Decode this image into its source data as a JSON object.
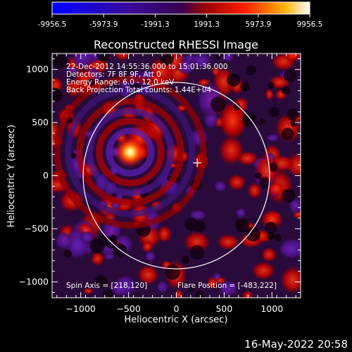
{
  "chart_data": {
    "type": "heatmap",
    "title": "Reconstructed RHESSI Image",
    "xlabel": "Heliocentric X (arcsec)",
    "ylabel": "Heliocentric Y (arcsec)",
    "xlim": [
      -1300,
      1300
    ],
    "ylim": [
      -1150,
      1150
    ],
    "x_ticks": [
      -1000,
      -500,
      0,
      500,
      1000
    ],
    "y_ticks": [
      1000,
      500,
      0,
      -500,
      -1000
    ],
    "colorbar": {
      "min": -9956.5,
      "max": 9956.5,
      "tick_labels": [
        "-9956.5",
        "-5973.9",
        "-1991.3",
        "1991.3",
        "5973.9",
        "9956.5"
      ]
    },
    "info_lines": [
      "22-Dec-2012 14:55:36.000 to 15:01:36.000",
      "Detectors: 7F 8F 9F, Att 0",
      "Energy Range: 6.0 - 12.0 keV",
      "Back Projection    Total counts: 1.44E+04"
    ],
    "spin_axis": "Spin Axis = [218,120]",
    "flare_position": "Flare Position = [-483,222]",
    "source": {
      "x": -483,
      "y": 222
    },
    "marker": {
      "x": 218,
      "y": 120
    },
    "solar_limb_radius": 975
  },
  "footer_date": "16-May-2022 20:58"
}
